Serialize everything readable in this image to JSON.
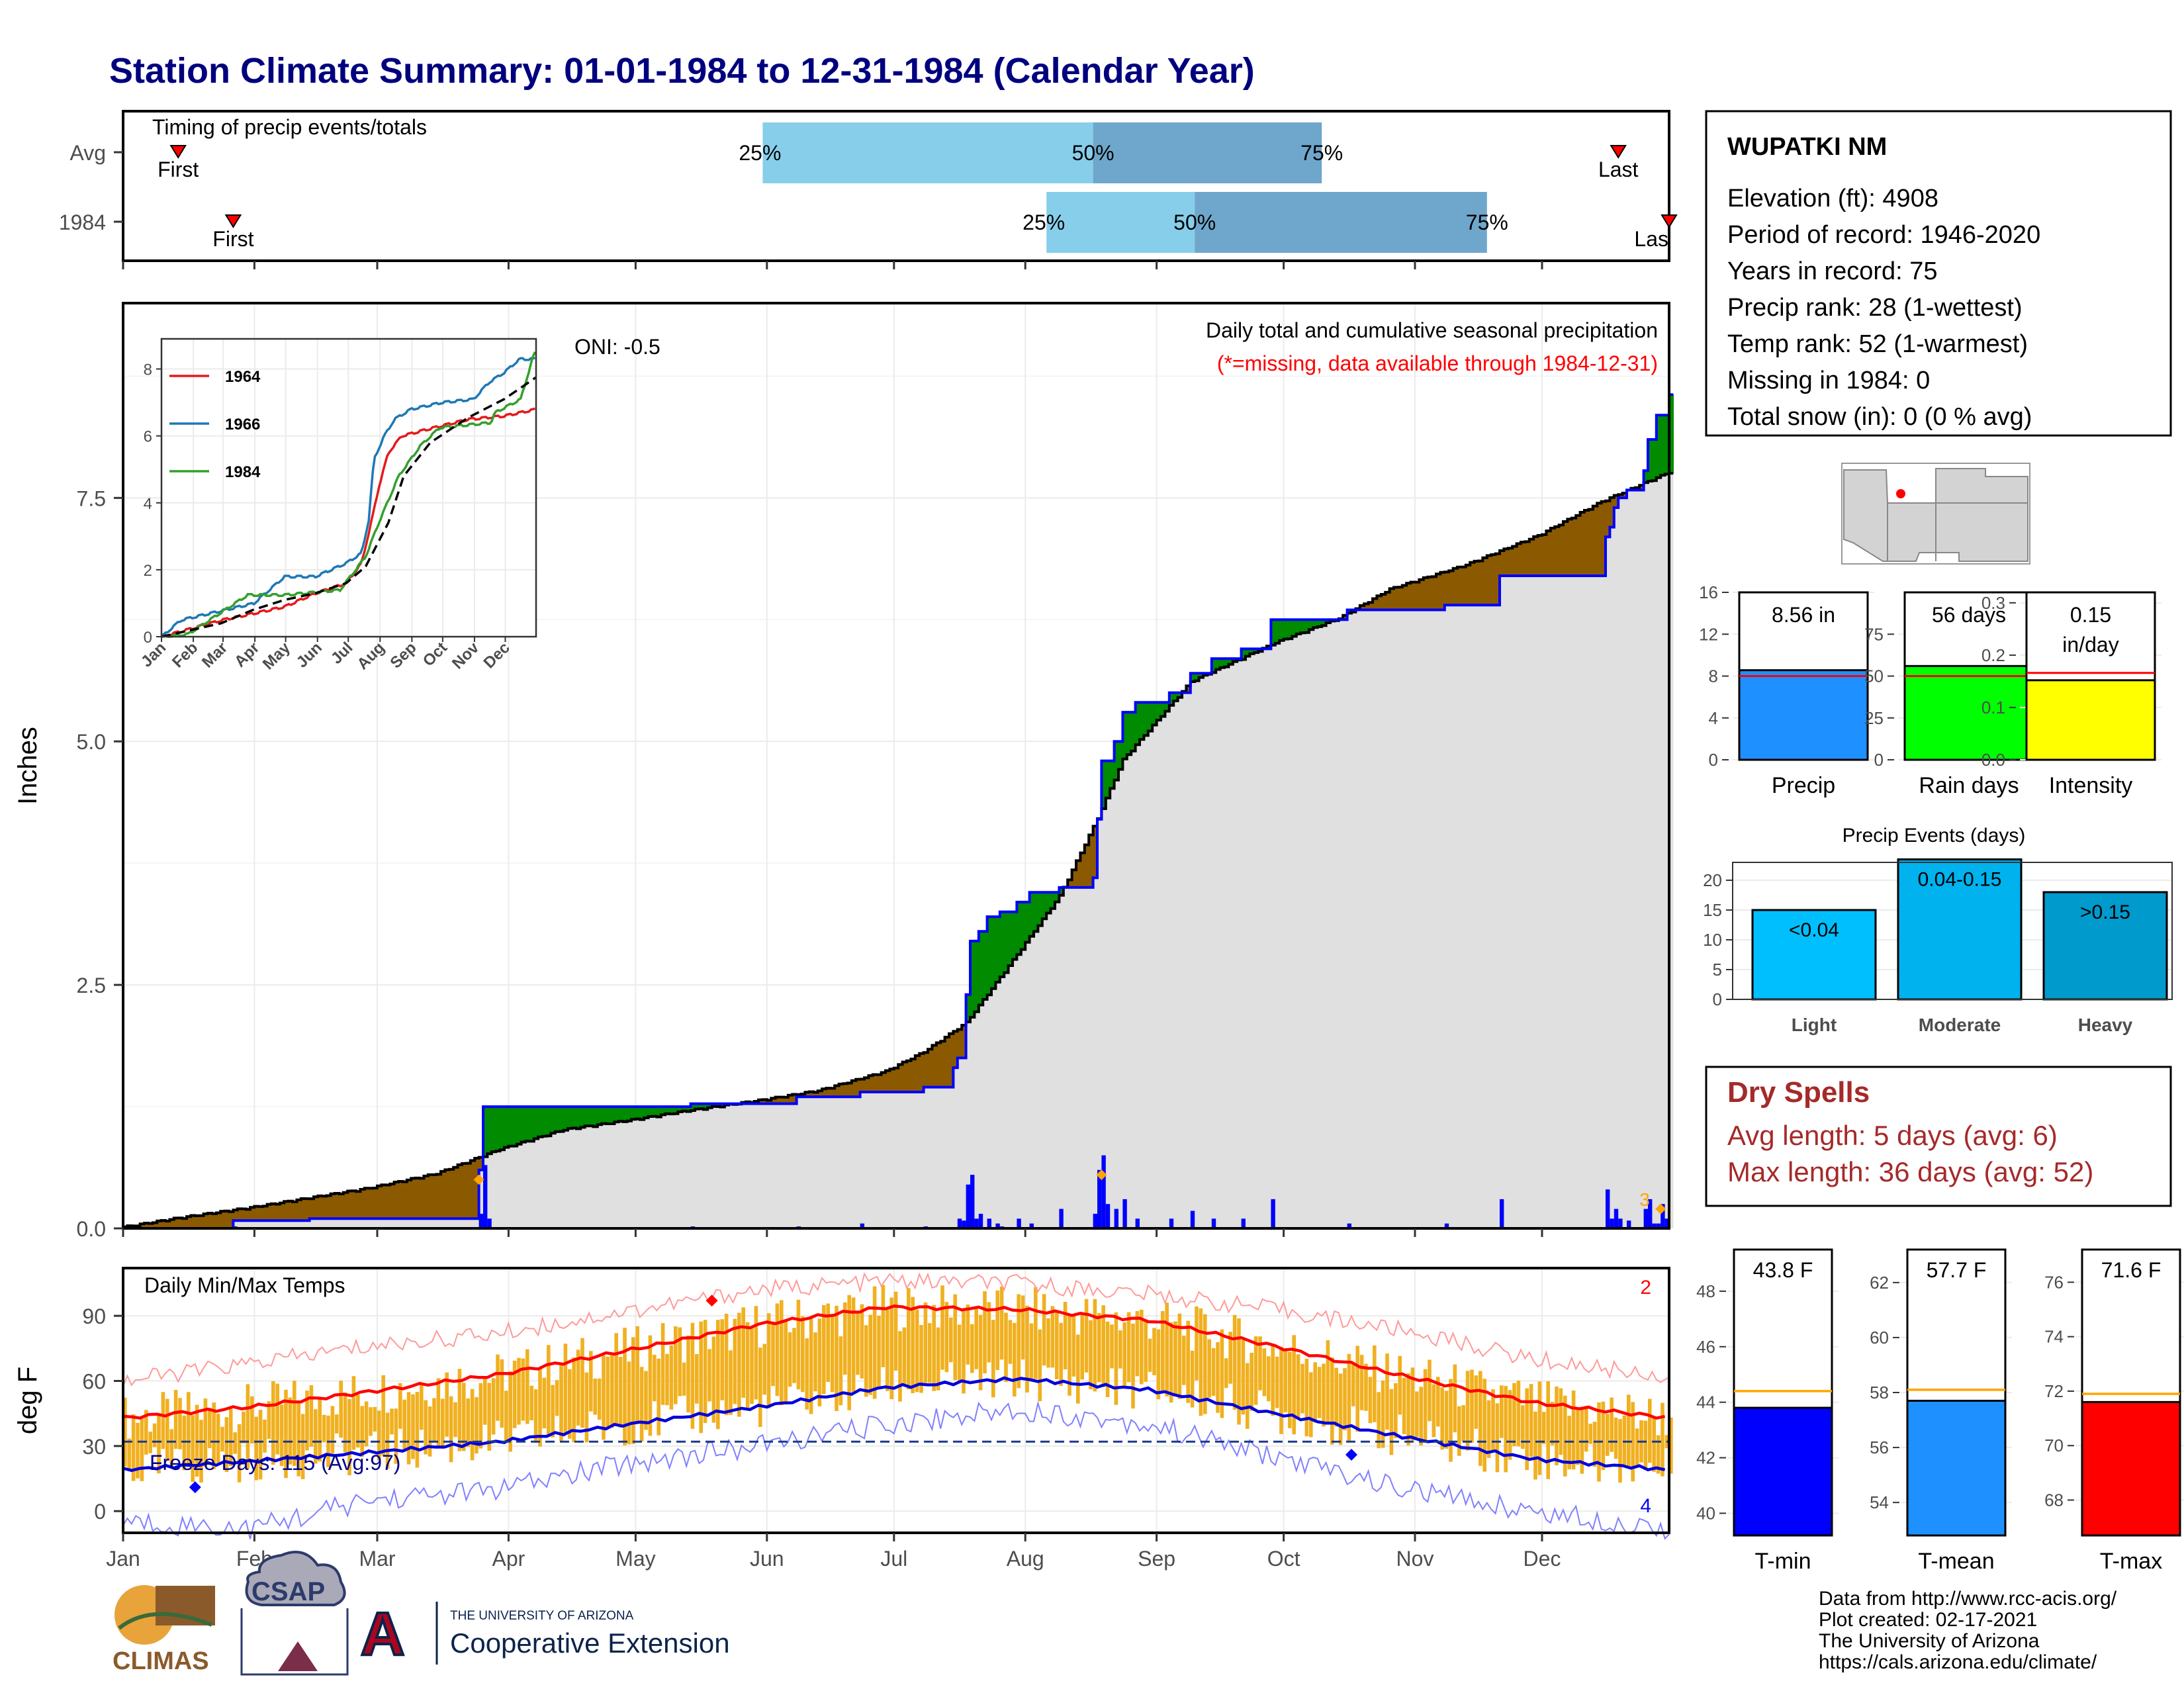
{
  "title": "Station Climate Summary: 01-01-1984 to 12-31-1984 (Calendar Year)",
  "colors": {
    "title": "#00007f",
    "q_light": "#87ceeb",
    "q_dark": "#6fa6cc",
    "brown": "#8b5a00",
    "green": "#008b00",
    "blue": "#0000ff",
    "gray_fill": "#e0e0e0",
    "orange": "#ffa500",
    "temp_bar": "#f0b020",
    "red": "#ff0000",
    "drybrown": "#a52a2a"
  },
  "timing": {
    "title": "Timing of precip events/totals",
    "rows": [
      {
        "label": "Avg",
        "first_doy": 14,
        "q25_doy": 152,
        "q50_doy": 230,
        "q75_doy": 284,
        "last_doy": 354,
        "first_text": "First",
        "last_text": "Last",
        "q25_text": "25%",
        "q50_text": "50%",
        "q75_text": "75%"
      },
      {
        "label": "1984",
        "first_doy": 27,
        "q25_doy": 219,
        "q50_doy": 254,
        "q75_doy": 323,
        "last_doy": 366,
        "first_text": "First",
        "last_text": "Las",
        "q25_text": "25%",
        "q50_text": "50%",
        "q75_text": "75%"
      }
    ]
  },
  "precip_chart": {
    "ylabel": "Inches",
    "yticks": [
      "0.0",
      "2.5",
      "5.0",
      "7.5"
    ],
    "ytick_values": [
      0,
      2.5,
      5.0,
      7.5
    ],
    "ylim": [
      0,
      9.5
    ],
    "caption": "Daily total and cumulative seasonal precipitation",
    "missing_note": "(*=missing, data available through 1984-12-31)",
    "oni": "ONI: -0.5",
    "end_label": "3",
    "avg_cumulative": [
      [
        1,
        0
      ],
      [
        15,
        0.1
      ],
      [
        31,
        0.2
      ],
      [
        45,
        0.3
      ],
      [
        59,
        0.4
      ],
      [
        75,
        0.55
      ],
      [
        90,
        0.8
      ],
      [
        105,
        1.0
      ],
      [
        121,
        1.1
      ],
      [
        135,
        1.2
      ],
      [
        151,
        1.3
      ],
      [
        165,
        1.4
      ],
      [
        181,
        1.6
      ],
      [
        190,
        1.8
      ],
      [
        200,
        2.1
      ],
      [
        212,
        2.8
      ],
      [
        222,
        3.4
      ],
      [
        231,
        4.2
      ],
      [
        237,
        4.8
      ],
      [
        243,
        5.1
      ],
      [
        253,
        5.6
      ],
      [
        263,
        5.8
      ],
      [
        273,
        6.0
      ],
      [
        288,
        6.25
      ],
      [
        300,
        6.55
      ],
      [
        318,
        6.8
      ],
      [
        335,
        7.1
      ],
      [
        350,
        7.45
      ],
      [
        366,
        7.75
      ]
    ],
    "cumulative_1984": [
      [
        1,
        0
      ],
      [
        27,
        0.08
      ],
      [
        45,
        0.1
      ],
      [
        84,
        0.1
      ],
      [
        85,
        0.6
      ],
      [
        86,
        1.25
      ],
      [
        121,
        1.25
      ],
      [
        135,
        1.28
      ],
      [
        160,
        1.35
      ],
      [
        175,
        1.4
      ],
      [
        190,
        1.45
      ],
      [
        197,
        1.65
      ],
      [
        198,
        1.75
      ],
      [
        200,
        2.4
      ],
      [
        201,
        2.95
      ],
      [
        203,
        3.05
      ],
      [
        205,
        3.2
      ],
      [
        208,
        3.25
      ],
      [
        212,
        3.35
      ],
      [
        215,
        3.45
      ],
      [
        222,
        3.5
      ],
      [
        230,
        3.6
      ],
      [
        231,
        4.2
      ],
      [
        232,
        4.8
      ],
      [
        235,
        5.0
      ],
      [
        237,
        5.3
      ],
      [
        240,
        5.4
      ],
      [
        245,
        5.4
      ],
      [
        248,
        5.5
      ],
      [
        253,
        5.7
      ],
      [
        258,
        5.85
      ],
      [
        265,
        5.95
      ],
      [
        272,
        6.25
      ],
      [
        280,
        6.25
      ],
      [
        290,
        6.35
      ],
      [
        313,
        6.4
      ],
      [
        322,
        6.4
      ],
      [
        326,
        6.7
      ],
      [
        350,
        6.7
      ],
      [
        351,
        7.1
      ],
      [
        352,
        7.2
      ],
      [
        353,
        7.4
      ],
      [
        354,
        7.5
      ],
      [
        356,
        7.58
      ],
      [
        360,
        7.78
      ],
      [
        361,
        8.1
      ],
      [
        362,
        8.1
      ],
      [
        363,
        8.35
      ],
      [
        366,
        8.56
      ]
    ],
    "daily_1984": [
      [
        27,
        0.02
      ],
      [
        85,
        0.15
      ],
      [
        86,
        0.65
      ],
      [
        87,
        0.1
      ],
      [
        135,
        0.02
      ],
      [
        160,
        0.02
      ],
      [
        175,
        0.05
      ],
      [
        190,
        0.02
      ],
      [
        198,
        0.1
      ],
      [
        199,
        0.08
      ],
      [
        200,
        0.45
      ],
      [
        201,
        0.55
      ],
      [
        202,
        0.1
      ],
      [
        203,
        0.15
      ],
      [
        205,
        0.1
      ],
      [
        207,
        0.05
      ],
      [
        208,
        0.02
      ],
      [
        212,
        0.1
      ],
      [
        215,
        0.05
      ],
      [
        222,
        0.2
      ],
      [
        230,
        0.15
      ],
      [
        231,
        0.6
      ],
      [
        232,
        0.75
      ],
      [
        233,
        0.25
      ],
      [
        235,
        0.2
      ],
      [
        237,
        0.3
      ],
      [
        240,
        0.1
      ],
      [
        248,
        0.1
      ],
      [
        253,
        0.18
      ],
      [
        258,
        0.1
      ],
      [
        265,
        0.1
      ],
      [
        272,
        0.3
      ],
      [
        290,
        0.05
      ],
      [
        313,
        0.05
      ],
      [
        326,
        0.3
      ],
      [
        351,
        0.4
      ],
      [
        352,
        0.1
      ],
      [
        353,
        0.2
      ],
      [
        354,
        0.1
      ],
      [
        356,
        0.08
      ],
      [
        360,
        0.2
      ],
      [
        361,
        0.3
      ],
      [
        362,
        0.05
      ],
      [
        363,
        0.05
      ],
      [
        364,
        0.25
      ],
      [
        365,
        0.1
      ]
    ],
    "orange_points": [
      [
        85,
        0.5
      ],
      [
        232,
        0.55
      ],
      [
        364,
        0.2
      ]
    ]
  },
  "inset": {
    "yticks": [
      "0",
      "2",
      "4",
      "6",
      "8"
    ],
    "ytick_values": [
      0,
      2,
      4,
      6,
      8
    ],
    "months": [
      "Jan",
      "Feb",
      "Mar",
      "Apr",
      "May",
      "Jun",
      "Jul",
      "Aug",
      "Sep",
      "Oct",
      "Nov",
      "Dec"
    ],
    "series": [
      {
        "name": "1964",
        "color": "#e31a1c",
        "points": [
          [
            1,
            0
          ],
          [
            60,
            0.5
          ],
          [
            91,
            0.7
          ],
          [
            121,
            0.9
          ],
          [
            151,
            1.3
          ],
          [
            181,
            1.6
          ],
          [
            196,
            2.2
          ],
          [
            206,
            3.5
          ],
          [
            213,
            4.5
          ],
          [
            222,
            5.5
          ],
          [
            235,
            6.0
          ],
          [
            260,
            6.2
          ],
          [
            300,
            6.5
          ],
          [
            335,
            6.6
          ],
          [
            366,
            6.8
          ]
        ]
      },
      {
        "name": "1966",
        "color": "#1f78b4",
        "points": [
          [
            1,
            0
          ],
          [
            20,
            0.5
          ],
          [
            91,
            1.0
          ],
          [
            121,
            1.8
          ],
          [
            151,
            1.8
          ],
          [
            181,
            2.2
          ],
          [
            196,
            2.5
          ],
          [
            203,
            3.5
          ],
          [
            208,
            5.3
          ],
          [
            218,
            6.0
          ],
          [
            228,
            6.5
          ],
          [
            244,
            6.8
          ],
          [
            274,
            7.0
          ],
          [
            305,
            7.1
          ],
          [
            320,
            7.6
          ],
          [
            335,
            7.9
          ],
          [
            350,
            8.3
          ],
          [
            366,
            8.3
          ]
        ]
      },
      {
        "name": "1984",
        "color": "#33a02c",
        "points": [
          [
            1,
            0
          ],
          [
            27,
            0.08
          ],
          [
            85,
            1.25
          ],
          [
            121,
            1.25
          ],
          [
            175,
            1.4
          ],
          [
            200,
            2.4
          ],
          [
            212,
            3.35
          ],
          [
            232,
            4.8
          ],
          [
            253,
            5.7
          ],
          [
            272,
            6.25
          ],
          [
            322,
            6.4
          ],
          [
            326,
            6.7
          ],
          [
            351,
            7.1
          ],
          [
            363,
            8.35
          ],
          [
            366,
            8.56
          ]
        ]
      }
    ],
    "avg_points": [
      [
        1,
        0
      ],
      [
        59,
        0.4
      ],
      [
        90,
        0.8
      ],
      [
        121,
        1.1
      ],
      [
        151,
        1.3
      ],
      [
        181,
        1.6
      ],
      [
        200,
        2.1
      ],
      [
        222,
        3.4
      ],
      [
        237,
        4.8
      ],
      [
        263,
        5.8
      ],
      [
        300,
        6.55
      ],
      [
        335,
        7.1
      ],
      [
        366,
        7.75
      ]
    ]
  },
  "temp_chart": {
    "ylabel": "deg F",
    "title": "Daily Min/Max Temps",
    "freeze": "Freeze Days: 115 (Avg:97)",
    "yticks": [
      "0",
      "30",
      "60",
      "90"
    ],
    "ytick_values": [
      0,
      30,
      60,
      90
    ],
    "ylim": [
      -10,
      112
    ],
    "freeze_line": 32,
    "count_top": "2",
    "count_bottom": "4",
    "avg_max": [
      [
        1,
        43
      ],
      [
        31,
        48
      ],
      [
        59,
        55
      ],
      [
        90,
        63
      ],
      [
        120,
        74
      ],
      [
        151,
        86
      ],
      [
        181,
        94
      ],
      [
        212,
        93
      ],
      [
        243,
        88
      ],
      [
        273,
        76
      ],
      [
        304,
        62
      ],
      [
        334,
        50
      ],
      [
        366,
        43
      ]
    ],
    "avg_min": [
      [
        1,
        19
      ],
      [
        31,
        23
      ],
      [
        59,
        27
      ],
      [
        90,
        32
      ],
      [
        120,
        40
      ],
      [
        151,
        48
      ],
      [
        181,
        57
      ],
      [
        212,
        61
      ],
      [
        243,
        56
      ],
      [
        273,
        45
      ],
      [
        304,
        34
      ],
      [
        334,
        24
      ],
      [
        366,
        19
      ]
    ],
    "record_max": [
      [
        1,
        60
      ],
      [
        31,
        68
      ],
      [
        59,
        76
      ],
      [
        90,
        82
      ],
      [
        120,
        92
      ],
      [
        151,
        102
      ],
      [
        181,
        106
      ],
      [
        212,
        105
      ],
      [
        243,
        100
      ],
      [
        273,
        93
      ],
      [
        304,
        83
      ],
      [
        334,
        70
      ],
      [
        366,
        62
      ]
    ],
    "record_min": [
      [
        1,
        -5
      ],
      [
        31,
        -8
      ],
      [
        59,
        5
      ],
      [
        90,
        10
      ],
      [
        120,
        22
      ],
      [
        151,
        30
      ],
      [
        181,
        40
      ],
      [
        212,
        47
      ],
      [
        243,
        40
      ],
      [
        273,
        25
      ],
      [
        304,
        10
      ],
      [
        334,
        0
      ],
      [
        366,
        -8
      ]
    ],
    "markers": [
      {
        "doy": 140,
        "value": 97,
        "color": "#ff0000"
      },
      {
        "doy": 18,
        "value": 11,
        "color": "#0000ff"
      },
      {
        "doy": 291,
        "value": 26,
        "color": "#0000ff"
      }
    ]
  },
  "months": [
    "Jan",
    "Feb",
    "Mar",
    "Apr",
    "May",
    "Jun",
    "Jul",
    "Aug",
    "Sep",
    "Oct",
    "Nov",
    "Dec"
  ],
  "station": {
    "name": "WUPATKI NM",
    "lines": [
      "Elevation (ft): 4908",
      "Period of record: 1946-2020",
      "Years in record: 75",
      "Precip rank: 28 (1-wettest)",
      "Temp rank: 52 (1-warmest)",
      "Missing in 1984: 0",
      "Total snow (in): 0 (0 % avg)"
    ]
  },
  "summary_bars": [
    {
      "label": "Precip",
      "value_text": "8.56 in",
      "value": 8.56,
      "avg": 8.0,
      "ymax": 16,
      "yticks": [
        "0",
        "4",
        "8",
        "12",
        "16"
      ],
      "ytick_values": [
        0,
        4,
        8,
        12,
        16
      ],
      "color": "#1e90ff"
    },
    {
      "label": "Rain days",
      "value_text": "56 days",
      "value": 56,
      "avg": 50,
      "ymax": 100,
      "yticks": [
        "0",
        "25",
        "50",
        "75"
      ],
      "ytick_values": [
        0,
        25,
        50,
        75
      ],
      "color": "#00ff00"
    },
    {
      "label": "Intensity",
      "value_text": "0.15",
      "value_text2": "in/day",
      "value": 0.152,
      "avg": 0.166,
      "ymax": 0.32,
      "yticks": [
        "0.0",
        "0.1",
        "0.2",
        "0.3"
      ],
      "ytick_values": [
        0,
        0.1,
        0.2,
        0.3
      ],
      "color": "#ffff00"
    }
  ],
  "events": {
    "title": "Precip Events (days)",
    "yticks": [
      "0",
      "5",
      "10",
      "15",
      "20"
    ],
    "ytick_values": [
      0,
      5,
      10,
      15,
      20
    ],
    "ymax": 23,
    "bars": [
      {
        "category": "Light",
        "label": "<0.04",
        "value": 15,
        "color": "#00bfff"
      },
      {
        "category": "Moderate",
        "label": "0.04-0.15",
        "value": 23.5,
        "color": "#00b2ee"
      },
      {
        "category": "Heavy",
        "label": ">0.15",
        "value": 18,
        "color": "#009acd"
      }
    ]
  },
  "dry_spells": {
    "title": "Dry Spells",
    "avg_length": "Avg length: 5 days (avg: 6)",
    "max_length": "Max length: 36 days (avg: 52)"
  },
  "temp_bars": [
    {
      "label": "T-min",
      "value_text": "43.8 F",
      "value": 43.8,
      "avg": 44.4,
      "ymin": 39.2,
      "ymax": 49.5,
      "yticks": [
        "40",
        "42",
        "44",
        "46",
        "48"
      ],
      "ytick_values": [
        40,
        42,
        44,
        46,
        48
      ],
      "color": "#0000ff"
    },
    {
      "label": "T-mean",
      "value_text": "57.7 F",
      "value": 57.7,
      "avg": 58.1,
      "ymin": 52.8,
      "ymax": 63.2,
      "yticks": [
        "54",
        "56",
        "58",
        "60",
        "62"
      ],
      "ytick_values": [
        54,
        56,
        58,
        60,
        62
      ],
      "color": "#1e90ff"
    },
    {
      "label": "T-max",
      "value_text": "71.6 F",
      "value": 71.6,
      "avg": 71.9,
      "ymin": 66.7,
      "ymax": 77.2,
      "yticks": [
        "68",
        "70",
        "72",
        "74",
        "76"
      ],
      "ytick_values": [
        68,
        70,
        72,
        74,
        76
      ],
      "color": "#ff0000"
    }
  ],
  "footer": {
    "lines": [
      "Data from http://www.rcc-acis.org/",
      "Plot created: 02-17-2021",
      "The University of Arizona",
      "https://cals.arizona.edu/climate/"
    ]
  },
  "logos": {
    "climas": "CLIMAS",
    "csap": "CSAP",
    "ua_letter": "A",
    "ua_top": "THE UNIVERSITY OF ARIZONA",
    "ua_bottom": "Cooperative Extension"
  }
}
